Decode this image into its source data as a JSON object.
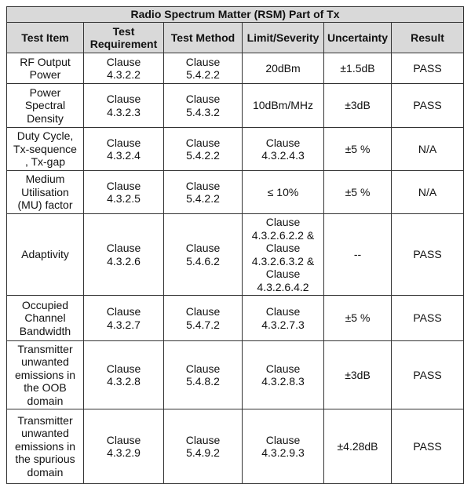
{
  "table": {
    "title": "Radio Spectrum Matter (RSM) Part of Tx",
    "headers": [
      "Test Item",
      "Test\nRequirement",
      "Test Method",
      "Limit/Severity",
      "Uncertainty",
      "Result"
    ],
    "rows": [
      [
        "RF Output\nPower",
        "Clause\n4.3.2.2",
        "Clause\n5.4.2.2",
        "20dBm",
        "±1.5dB",
        "PASS"
      ],
      [
        "Power\nSpectral\nDensity",
        "Clause\n4.3.2.3",
        "Clause\n5.4.3.2",
        "10dBm/MHz",
        "±3dB",
        "PASS"
      ],
      [
        "Duty Cycle,\nTx-sequence\n, Tx-gap",
        "Clause\n4.3.2.4",
        "Clause\n5.4.2.2",
        "Clause\n4.3.2.4.3",
        "±5 %",
        "N/A"
      ],
      [
        "Medium\nUtilisation\n(MU) factor",
        "Clause\n4.3.2.5",
        "Clause\n5.4.2.2",
        "≤ 10%",
        "±5 %",
        "N/A"
      ],
      [
        "Adaptivity",
        "Clause\n4.3.2.6",
        "Clause\n5.4.6.2",
        "Clause\n4.3.2.6.2.2 &\nClause\n4.3.2.6.3.2 &\nClause\n4.3.2.6.4.2",
        "--",
        "PASS"
      ],
      [
        "Occupied\nChannel\nBandwidth",
        "Clause\n4.3.2.7",
        "Clause\n5.4.7.2",
        "Clause\n4.3.2.7.3",
        "±5 %",
        "PASS"
      ],
      [
        "Transmitter\nunwanted\nemissions in\nthe OOB\ndomain",
        "Clause\n4.3.2.8",
        "Clause\n5.4.8.2",
        "Clause\n4.3.2.8.3",
        "±3dB",
        "PASS"
      ],
      [
        "Transmitter\nunwanted\nemissions in\nthe spurious\ndomain",
        "Clause\n4.3.2.9",
        "Clause\n5.4.9.2",
        "Clause\n4.3.2.9.3",
        "±4.28dB",
        "PASS"
      ]
    ]
  }
}
